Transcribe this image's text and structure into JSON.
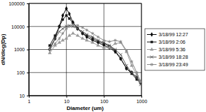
{
  "chart_data": {
    "type": "line",
    "x_label": "Diameter (um)",
    "y_label": "dN/dlog(Dp)",
    "log": true,
    "grid": true,
    "legend": "right",
    "xlim": [
      1,
      1000
    ],
    "ylim": [
      10,
      100000
    ],
    "xticks": [
      1,
      10,
      100,
      1000
    ],
    "yticks": [
      10,
      100,
      1000,
      10000,
      100000
    ],
    "x": [
      3.6,
      5,
      6.5,
      8,
      10,
      12,
      15,
      20,
      27,
      35,
      50,
      70,
      100,
      140,
      200,
      280,
      400,
      550,
      750,
      950
    ],
    "series": [
      {
        "name": "3/18/99 12:27",
        "color": "#000000",
        "marker": "diamond",
        "line_style": "solid",
        "values": [
          1000,
          3000,
          10000,
          30000,
          60000,
          35000,
          15000,
          8000,
          5000,
          3500,
          2500,
          2000,
          1500,
          1200,
          800,
          400,
          150,
          100,
          60,
          40
        ]
      },
      {
        "name": "3/18/99 2:06",
        "color": "#1a1a1a",
        "marker": "square",
        "line_style": "solid",
        "values": [
          1500,
          4000,
          10000,
          20000,
          30000,
          22000,
          14000,
          8000,
          5000,
          4000,
          3000,
          2200,
          1800,
          1400,
          900,
          400,
          150,
          90,
          50,
          35
        ]
      },
      {
        "name": "3/18/99 5:36",
        "color": "#999999",
        "marker": "triangle",
        "line_style": "solid",
        "values": [
          700,
          1500,
          2000,
          2500,
          3000,
          4000,
          5000,
          4000,
          3000,
          2500,
          2000,
          1500,
          1200,
          1200,
          1800,
          2000,
          800,
          200,
          80,
          40
        ]
      },
      {
        "name": "3/18/99 18:28",
        "color": "#555555",
        "marker": "x",
        "line_style": "solid",
        "values": [
          1200,
          3000,
          6000,
          8000,
          10000,
          11000,
          10000,
          8000,
          6000,
          4500,
          3500,
          2500,
          2000,
          1500,
          1000,
          600,
          200,
          100,
          60,
          30
        ]
      },
      {
        "name": "3/18/99 23:49",
        "color": "#888888",
        "marker": "asterisk",
        "line_style": "solid",
        "values": [
          1000,
          1800,
          3000,
          5000,
          8000,
          10000,
          12000,
          11000,
          9000,
          7000,
          5000,
          3500,
          2500,
          2200,
          2500,
          2200,
          900,
          300,
          100,
          40
        ]
      }
    ]
  }
}
